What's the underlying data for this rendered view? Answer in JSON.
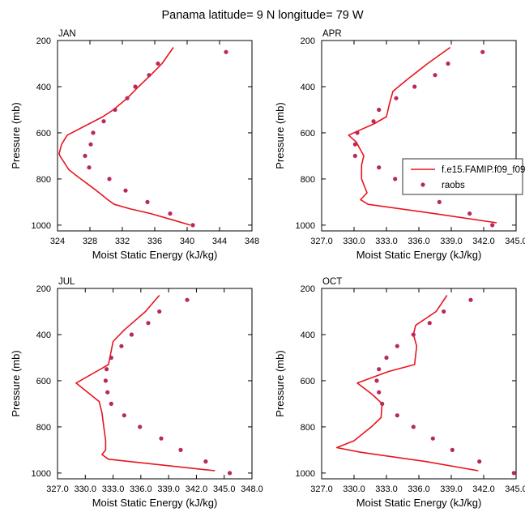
{
  "figure_title": "Panama  latitude= 9 N longitude= 79 W",
  "legend": {
    "model_label": "f.e15.FAMIP.f09_f09",
    "obs_label": "raobs",
    "model_color": "#e8141e",
    "obs_color": "#b8295a"
  },
  "chart_data": [
    {
      "type": "line",
      "panel_label": "JAN",
      "xlabel": "Moist Static Energy (kJ/kg)",
      "ylabel": "Pressure (mb)",
      "xlim": [
        324,
        348
      ],
      "ylim": [
        1025,
        200
      ],
      "y_inverted": true,
      "xticks": [
        324,
        328,
        332,
        336,
        340,
        344,
        348
      ],
      "xtick_labels": [
        "324",
        "328",
        "332",
        "336",
        "340",
        "344",
        "348"
      ],
      "yticks": [
        200,
        400,
        600,
        800,
        1000
      ],
      "ytick_labels": [
        "200",
        "400",
        "600",
        "800",
        "1000"
      ],
      "model": {
        "name": "f.e15.FAMIP.f09_f09",
        "p": [
          230,
          300,
          350,
          400,
          450,
          500,
          530,
          610,
          650,
          690,
          700,
          760,
          790,
          850,
          890,
          910,
          930,
          950,
          975,
          1000
        ],
        "mse": [
          338.3,
          336.9,
          335.5,
          334.0,
          332.6,
          330.9,
          329.6,
          325.2,
          324.5,
          324.2,
          324.3,
          325.4,
          326.5,
          328.8,
          330.2,
          331.0,
          333.0,
          335.5,
          338.0,
          340.4
        ]
      },
      "obs": {
        "name": "raobs",
        "p": [
          250,
          300,
          350,
          400,
          450,
          500,
          550,
          600,
          650,
          700,
          750,
          800,
          850,
          900,
          950,
          1000
        ],
        "mse": [
          344.8,
          336.4,
          335.3,
          333.6,
          332.6,
          331.1,
          329.7,
          328.4,
          328.1,
          327.4,
          327.9,
          330.4,
          332.4,
          335.1,
          337.9,
          340.7
        ]
      }
    },
    {
      "type": "line",
      "panel_label": "APR",
      "xlabel": "Moist Static Energy (kJ/kg)",
      "ylabel": "Pressure (mb)",
      "xlim": [
        327,
        345
      ],
      "ylim": [
        1025,
        200
      ],
      "y_inverted": true,
      "xticks": [
        327,
        330,
        333,
        336,
        339,
        342,
        345
      ],
      "xtick_labels": [
        "327.0",
        "330.0",
        "333.0",
        "336.0",
        "339.0",
        "342.0",
        "345.0"
      ],
      "yticks": [
        200,
        400,
        600,
        800,
        1000
      ],
      "ytick_labels": [
        "200",
        "400",
        "600",
        "800",
        "1000"
      ],
      "model": {
        "name": "f.e15.FAMIP.f09_f09",
        "p": [
          230,
          300,
          370,
          420,
          470,
          530,
          560,
          610,
          640,
          700,
          740,
          800,
          860,
          890,
          910,
          950,
          990
        ],
        "mse": [
          338.9,
          336.8,
          334.9,
          333.6,
          333.3,
          333.0,
          331.9,
          329.5,
          330.2,
          330.9,
          330.7,
          330.7,
          331.2,
          330.6,
          331.3,
          337.4,
          343.2
        ]
      },
      "obs": {
        "name": "raobs",
        "p": [
          250,
          300,
          350,
          400,
          450,
          500,
          550,
          600,
          650,
          700,
          750,
          800,
          850,
          900,
          950,
          1000
        ],
        "mse": [
          341.9,
          338.7,
          337.5,
          335.6,
          333.9,
          332.3,
          331.8,
          330.3,
          330.1,
          330.1,
          332.3,
          333.8,
          335.6,
          337.9,
          340.7,
          342.8
        ]
      }
    },
    {
      "type": "line",
      "panel_label": "JUL",
      "xlabel": "Moist Static Energy (kJ/kg)",
      "ylabel": "Pressure (mb)",
      "xlim": [
        327,
        348
      ],
      "ylim": [
        1025,
        200
      ],
      "y_inverted": true,
      "xticks": [
        327,
        330,
        333,
        336,
        339,
        342,
        345,
        348
      ],
      "xtick_labels": [
        "327.0",
        "330.0",
        "333.0",
        "336.0",
        "339.0",
        "342.0",
        "345.0",
        "348.0"
      ],
      "yticks": [
        200,
        400,
        600,
        800,
        1000
      ],
      "ytick_labels": [
        "200",
        "400",
        "600",
        "800",
        "1000"
      ],
      "model": {
        "name": "f.e15.FAMIP.f09_f09",
        "p": [
          230,
          300,
          380,
          430,
          530,
          610,
          690,
          740,
          800,
          860,
          900,
          920,
          940,
          990
        ],
        "mse": [
          338.0,
          336.5,
          334.2,
          333.0,
          332.5,
          329.0,
          331.5,
          331.8,
          332.0,
          332.2,
          332.2,
          331.8,
          332.5,
          344.0
        ]
      },
      "obs": {
        "name": "raobs",
        "p": [
          250,
          300,
          350,
          400,
          450,
          500,
          550,
          600,
          650,
          700,
          750,
          800,
          850,
          900,
          950,
          1000
        ],
        "mse": [
          341.0,
          338.0,
          336.8,
          335.0,
          333.9,
          332.8,
          332.3,
          332.2,
          332.4,
          332.8,
          334.2,
          335.9,
          338.2,
          340.3,
          343.0,
          345.6
        ]
      }
    },
    {
      "type": "line",
      "panel_label": "OCT",
      "xlabel": "Moist Static Energy (kJ/kg)",
      "ylabel": "Pressure (mb)",
      "xlim": [
        327,
        345
      ],
      "ylim": [
        1025,
        200
      ],
      "y_inverted": true,
      "xticks": [
        327,
        330,
        333,
        336,
        339,
        342,
        345
      ],
      "xtick_labels": [
        "327.0",
        "330.0",
        "333.0",
        "336.0",
        "339.0",
        "342.0",
        "345.0"
      ],
      "yticks": [
        200,
        400,
        600,
        800,
        1000
      ],
      "ytick_labels": [
        "200",
        "400",
        "600",
        "800",
        "1000"
      ],
      "model": {
        "name": "f.e15.FAMIP.f09_f09",
        "p": [
          230,
          300,
          360,
          400,
          450,
          530,
          560,
          610,
          660,
          700,
          760,
          800,
          860,
          890,
          910,
          950,
          990
        ],
        "mse": [
          338.6,
          337.6,
          335.7,
          335.5,
          335.8,
          335.6,
          333.2,
          330.3,
          331.7,
          332.6,
          332.5,
          331.6,
          330.0,
          328.4,
          330.6,
          336.6,
          341.5
        ]
      },
      "obs": {
        "name": "raobs",
        "p": [
          250,
          300,
          350,
          400,
          450,
          500,
          550,
          600,
          650,
          700,
          750,
          800,
          850,
          900,
          950,
          1000
        ],
        "mse": [
          340.8,
          338.3,
          337.0,
          335.5,
          334.0,
          333.0,
          332.3,
          332.1,
          332.3,
          332.6,
          334.0,
          335.5,
          337.3,
          339.1,
          341.6,
          344.8
        ]
      }
    }
  ]
}
